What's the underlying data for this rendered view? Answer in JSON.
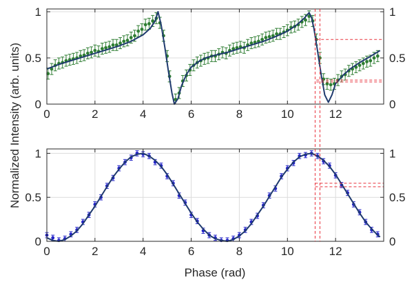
{
  "chart_data": {
    "type": "line",
    "xlabel": "Phase (rad)",
    "ylabel": "Normalized Intensity (arb. units)",
    "xlim": [
      0,
      14
    ],
    "x_ticks": [
      0,
      2,
      4,
      6,
      8,
      10,
      12
    ],
    "y_ticks": [
      0,
      0.5,
      1
    ],
    "y_tick_labels": [
      "0",
      "0.5",
      "1"
    ],
    "grid": true,
    "right_axis_ticks": true,
    "colors": {
      "fit_line": "#1f3a6e",
      "top_markers": "#2e7d32",
      "bottom_markers": "#2424c8",
      "reference_lines": "#e8323c",
      "grid": "#dcdcdc",
      "axes": "#262626"
    },
    "panels": [
      {
        "position": "top",
        "ylim": [
          0,
          1.03
        ],
        "series": [
          {
            "kind": "fit",
            "x": [
              0,
              0.5,
              1,
              1.5,
              2,
              2.5,
              3,
              3.5,
              4,
              4.3,
              4.5,
              4.62,
              4.75,
              4.9,
              5.05,
              5.2,
              5.3,
              5.45,
              5.6,
              5.8,
              6,
              6.3,
              6.6,
              7,
              7.5,
              8,
              8.5,
              9,
              9.5,
              10,
              10.4,
              10.7,
              10.9,
              11.0,
              11.1,
              11.25,
              11.4,
              11.55,
              11.7,
              11.85,
              12,
              12.3,
              12.6,
              13,
              13.4,
              13.85
            ],
            "y": [
              0.38,
              0.43,
              0.47,
              0.51,
              0.55,
              0.59,
              0.63,
              0.68,
              0.75,
              0.82,
              0.9,
              1.0,
              0.86,
              0.62,
              0.36,
              0.12,
              0.0,
              0.06,
              0.2,
              0.32,
              0.4,
              0.46,
              0.5,
              0.53,
              0.56,
              0.6,
              0.64,
              0.68,
              0.73,
              0.79,
              0.86,
              0.93,
              0.99,
              0.94,
              0.82,
              0.58,
              0.32,
              0.1,
              0.02,
              0.1,
              0.22,
              0.31,
              0.38,
              0.45,
              0.51,
              0.58
            ]
          },
          {
            "kind": "measured",
            "x": [
              0.05,
              0.2,
              0.35,
              0.5,
              0.65,
              0.8,
              0.95,
              1.1,
              1.25,
              1.4,
              1.55,
              1.7,
              1.85,
              2.0,
              2.15,
              2.3,
              2.45,
              2.6,
              2.75,
              2.9,
              3.05,
              3.2,
              3.35,
              3.5,
              3.65,
              3.8,
              3.95,
              4.1,
              4.25,
              4.4,
              4.55,
              4.7,
              4.85,
              5.0,
              5.1,
              5.35,
              5.5,
              5.65,
              5.8,
              5.95,
              6.1,
              6.25,
              6.4,
              6.55,
              6.7,
              6.85,
              7.0,
              7.15,
              7.3,
              7.45,
              7.6,
              7.75,
              7.9,
              8.05,
              8.2,
              8.35,
              8.5,
              8.65,
              8.8,
              8.95,
              9.1,
              9.25,
              9.4,
              9.55,
              9.7,
              9.85,
              10.0,
              10.15,
              10.3,
              10.45,
              10.6,
              10.75,
              10.9,
              11.05,
              11.2,
              11.35,
              11.5,
              11.65,
              11.8,
              11.95,
              12.1,
              12.25,
              12.4,
              12.55,
              12.7,
              12.85,
              13.0,
              13.15,
              13.3,
              13.45,
              13.6,
              13.75
            ],
            "y": [
              0.33,
              0.38,
              0.42,
              0.44,
              0.45,
              0.47,
              0.48,
              0.49,
              0.5,
              0.52,
              0.53,
              0.55,
              0.56,
              0.58,
              0.57,
              0.6,
              0.61,
              0.62,
              0.64,
              0.64,
              0.66,
              0.68,
              0.69,
              0.72,
              0.74,
              0.79,
              0.81,
              0.86,
              0.87,
              0.9,
              0.93,
              0.88,
              0.74,
              0.52,
              0.3,
              0.05,
              0.12,
              0.25,
              0.31,
              0.37,
              0.42,
              0.45,
              0.47,
              0.49,
              0.5,
              0.52,
              0.52,
              0.54,
              0.56,
              0.55,
              0.58,
              0.6,
              0.61,
              0.62,
              0.61,
              0.64,
              0.66,
              0.67,
              0.68,
              0.7,
              0.72,
              0.73,
              0.74,
              0.76,
              0.76,
              0.78,
              0.8,
              0.83,
              0.84,
              0.86,
              0.89,
              0.91,
              0.95,
              0.9,
              0.7,
              0.5,
              0.27,
              0.22,
              0.21,
              0.22,
              0.26,
              0.3,
              0.32,
              0.36,
              0.38,
              0.4,
              0.42,
              0.44,
              0.46,
              0.47,
              0.5,
              0.52
            ],
            "error": 0.06
          }
        ],
        "reference_lines": [
          {
            "orientation": "horizontal",
            "y": 0.7,
            "x_from": 11.2,
            "x_to": 14
          },
          {
            "orientation": "horizontal",
            "y": 0.26,
            "x_from": 11.2,
            "x_to": 14
          },
          {
            "orientation": "horizontal",
            "y": 0.24,
            "x_from": 11.2,
            "x_to": 14
          }
        ]
      },
      {
        "position": "bottom",
        "ylim": [
          0,
          1.05
        ],
        "series": [
          {
            "kind": "fit",
            "x": [
              0,
              0.25,
              0.5,
              0.75,
              1,
              1.25,
              1.5,
              1.75,
              2,
              2.25,
              2.5,
              2.75,
              3,
              3.25,
              3.5,
              3.75,
              4,
              4.25,
              4.5,
              4.75,
              5,
              5.25,
              5.5,
              5.75,
              6,
              6.25,
              6.5,
              6.75,
              7,
              7.25,
              7.5,
              7.75,
              8,
              8.25,
              8.5,
              8.75,
              9,
              9.25,
              9.5,
              9.75,
              10,
              10.25,
              10.5,
              10.75,
              11,
              11.25,
              11.5,
              11.75,
              12,
              12.25,
              12.5,
              12.75,
              13,
              13.25,
              13.5,
              13.75,
              13.85
            ],
            "y": [
              0.04,
              0.01,
              0.0,
              0.02,
              0.06,
              0.12,
              0.2,
              0.3,
              0.4,
              0.51,
              0.62,
              0.73,
              0.82,
              0.9,
              0.96,
              0.99,
              1.0,
              0.97,
              0.92,
              0.85,
              0.76,
              0.65,
              0.54,
              0.43,
              0.32,
              0.22,
              0.14,
              0.07,
              0.03,
              0.01,
              0.0,
              0.02,
              0.06,
              0.12,
              0.2,
              0.3,
              0.4,
              0.51,
              0.62,
              0.73,
              0.82,
              0.9,
              0.96,
              0.99,
              1.0,
              0.97,
              0.92,
              0.85,
              0.76,
              0.65,
              0.54,
              0.43,
              0.32,
              0.22,
              0.14,
              0.07,
              0.05
            ]
          },
          {
            "kind": "measured",
            "x": [
              0.0,
              0.25,
              0.5,
              0.75,
              1.0,
              1.25,
              1.5,
              1.75,
              2.0,
              2.25,
              2.5,
              2.75,
              3.0,
              3.25,
              3.5,
              3.75,
              4.0,
              4.25,
              4.5,
              4.75,
              5.0,
              5.25,
              5.5,
              5.75,
              6.0,
              6.25,
              6.5,
              6.75,
              7.0,
              7.25,
              7.5,
              7.75,
              8.0,
              8.25,
              8.5,
              8.75,
              9.0,
              9.25,
              9.5,
              9.75,
              10.0,
              10.25,
              10.5,
              10.75,
              11.0,
              11.25,
              11.5,
              11.75,
              12.0,
              12.25,
              12.5,
              12.75,
              13.0,
              13.25,
              13.5,
              13.75
            ],
            "y": [
              0.07,
              0.04,
              0.01,
              0.03,
              0.08,
              0.13,
              0.22,
              0.3,
              0.42,
              0.5,
              0.63,
              0.72,
              0.83,
              0.9,
              0.95,
              1.0,
              0.99,
              0.97,
              0.9,
              0.86,
              0.74,
              0.66,
              0.52,
              0.44,
              0.3,
              0.23,
              0.12,
              0.07,
              0.04,
              0.01,
              0.01,
              0.03,
              0.07,
              0.13,
              0.22,
              0.29,
              0.41,
              0.52,
              0.6,
              0.74,
              0.83,
              0.89,
              0.97,
              0.98,
              1.0,
              0.97,
              0.91,
              0.86,
              0.75,
              0.64,
              0.55,
              0.42,
              0.33,
              0.22,
              0.13,
              0.08
            ],
            "error": 0.03
          }
        ],
        "reference_lines": [
          {
            "orientation": "horizontal",
            "y": 0.66,
            "x_from": 11.15,
            "x_to": 14
          },
          {
            "orientation": "horizontal",
            "y": 0.62,
            "x_from": 11.15,
            "x_to": 14
          }
        ]
      }
    ],
    "shared_vertical_reference_lines": [
      {
        "x": 11.15
      },
      {
        "x": 11.35
      }
    ]
  }
}
